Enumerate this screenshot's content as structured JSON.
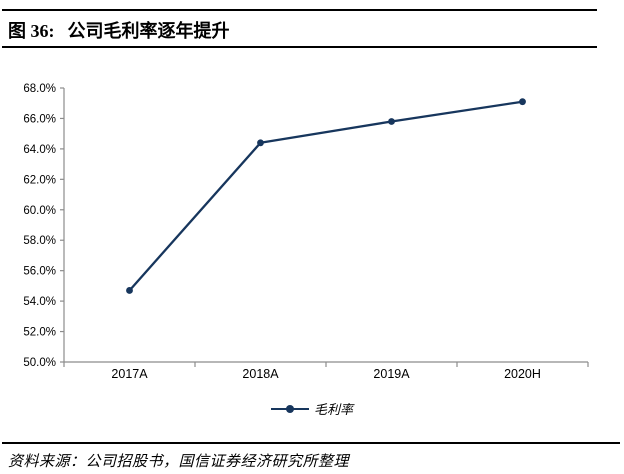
{
  "figure": {
    "number_label": "图 36:",
    "title": "公司毛利率逐年提升"
  },
  "chart_data": {
    "type": "line",
    "categories": [
      "2017A",
      "2018A",
      "2019A",
      "2020H"
    ],
    "series": [
      {
        "name": "毛利率",
        "values": [
          54.7,
          64.4,
          65.8,
          67.1
        ]
      }
    ],
    "title": "公司毛利率逐年提升",
    "xlabel": "",
    "ylabel": "",
    "ylim": [
      50,
      68
    ],
    "ytick_step": 2,
    "ytick_suffix": "%",
    "grid": false,
    "legend_position": "bottom",
    "line_color": "#17365d",
    "marker_color": "#17365d",
    "axis_color": "#8c8c8c"
  },
  "footer": {
    "source_text": "资料来源：公司招股书，国信证券经济研究所整理"
  }
}
